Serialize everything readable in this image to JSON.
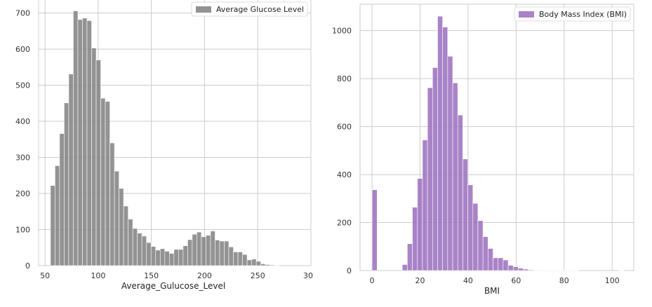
{
  "chart_data": [
    {
      "type": "bar",
      "series_name": "Average Glucose Level",
      "xlabel": "Average_Gulucose_Level",
      "ylabel": "",
      "color": "#808080",
      "xlim": [
        44,
        300
      ],
      "ylim": [
        0,
        740
      ],
      "grid": true,
      "legend_position": "top-right",
      "xticks": [
        50,
        100,
        150,
        200,
        250
      ],
      "xtick_labels": [
        "50",
        "100",
        "150",
        "200",
        "250"
      ],
      "extra_x_label": "30",
      "yticks": [
        0,
        100,
        200,
        300,
        400,
        500,
        600,
        700
      ],
      "ytick_labels": [
        "0",
        "100",
        "200",
        "300",
        "400",
        "500",
        "600",
        "700"
      ],
      "bin_start": 55.12,
      "bin_width": 4.3,
      "counts": [
        222,
        277,
        366,
        451,
        531,
        706,
        682,
        686,
        679,
        603,
        570,
        464,
        455,
        340,
        262,
        214,
        165,
        129,
        103,
        90,
        82,
        64,
        53,
        43,
        47,
        40,
        34,
        45,
        45,
        55,
        72,
        87,
        93,
        80,
        84,
        96,
        71,
        68,
        68,
        52,
        38,
        38,
        31,
        16,
        18,
        12,
        5,
        3,
        2,
        1
      ]
    },
    {
      "type": "bar",
      "series_name": "Body Mass Index (BMI)",
      "xlabel": "BMI",
      "ylabel": "",
      "color": "#9a6dbd",
      "xlim": [
        -5,
        109
      ],
      "ylim": [
        0,
        1110
      ],
      "grid": true,
      "legend_position": "top-right",
      "xticks": [
        0,
        20,
        40,
        60,
        80,
        100
      ],
      "xtick_labels": [
        "0",
        "20",
        "40",
        "60",
        "80",
        "100"
      ],
      "yticks": [
        0,
        200,
        400,
        600,
        800,
        1000
      ],
      "ytick_labels": [
        "0",
        "200",
        "400",
        "600",
        "800",
        "1000"
      ],
      "bin_start": 0,
      "bin_width": 2.1,
      "counts": [
        337,
        0,
        0,
        0,
        0,
        0,
        25,
        112,
        264,
        384,
        544,
        762,
        846,
        1060,
        1015,
        893,
        782,
        648,
        465,
        357,
        280,
        208,
        141,
        92,
        53,
        53,
        44,
        22,
        16,
        10,
        6,
        3,
        2,
        2,
        1,
        1,
        1,
        1,
        1,
        1,
        1,
        0,
        0,
        0,
        0,
        0,
        0,
        0,
        0,
        1
      ]
    }
  ]
}
